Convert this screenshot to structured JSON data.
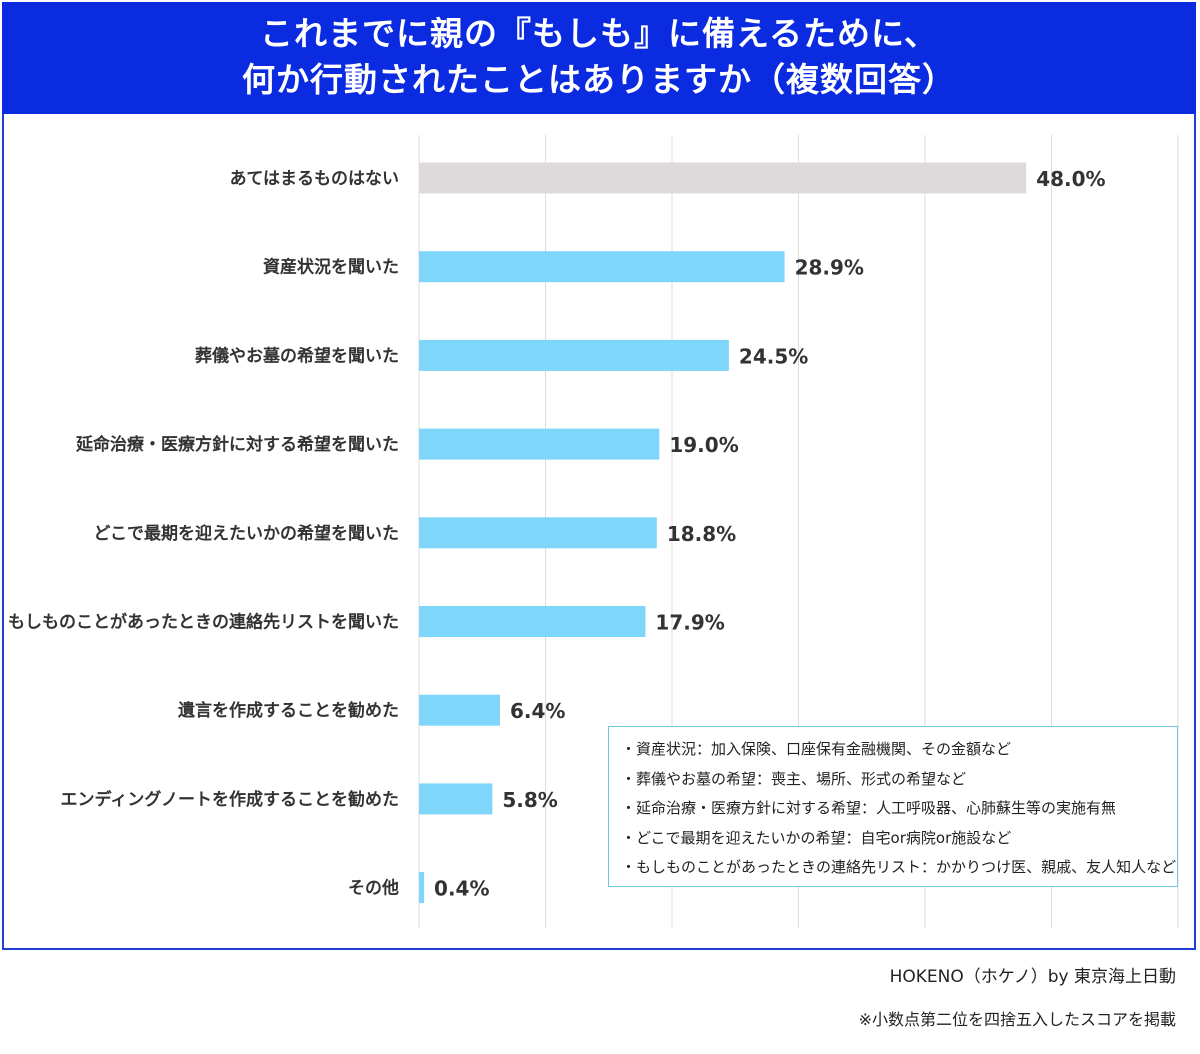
{
  "title": {
    "line1": "これまでに親の『もしも』に備えるために、",
    "line2": "何か行動されたことはありますか（複数回答）"
  },
  "colors": {
    "header_bg": "#0b2be0",
    "bar_main": "#7fd6fb",
    "bar_none": "#dedadc",
    "grid": "#dcdcdc",
    "note_border": "#6fc6e6"
  },
  "chart_data": {
    "type": "bar",
    "orientation": "horizontal",
    "categories": [
      "あてはまるものはない",
      "資産状況を聞いた",
      "葬儀やお墓の希望を聞いた",
      "延命治療・医療方針に対する希望を聞いた",
      "どこで最期を迎えたいかの希望を聞いた",
      "もしものことがあったときの連絡先リストを聞いた",
      "遺言を作成することを勧めた",
      "エンディングノートを作成することを勧めた",
      "その他"
    ],
    "values": [
      48.0,
      28.9,
      24.5,
      19.0,
      18.8,
      17.9,
      6.4,
      5.8,
      0.4
    ],
    "value_labels": [
      "48.0%",
      "28.9%",
      "24.5%",
      "19.0%",
      "18.8%",
      "17.9%",
      "6.4%",
      "5.8%",
      "0.4%"
    ],
    "xlim": [
      0,
      60
    ],
    "grid": "vertical gridlines every 10",
    "unit": "%"
  },
  "notes": [
    "・資産状況：加入保険、口座保有金融機関、その金額など",
    "・葬儀やお墓の希望：喪主、場所、形式の希望など",
    "・延命治療・医療方針に対する希望：人工呼吸器、心肺蘇生等の実施有無",
    "・どこで最期を迎えたいかの希望：自宅or病院or施設など",
    "・もしものことがあったときの連絡先リスト：かかりつけ医、親戚、友人知人など"
  ],
  "source": "HOKENO（ホケノ）by 東京海上日動",
  "footnote": "※小数点第二位を四捨五入したスコアを掲載"
}
